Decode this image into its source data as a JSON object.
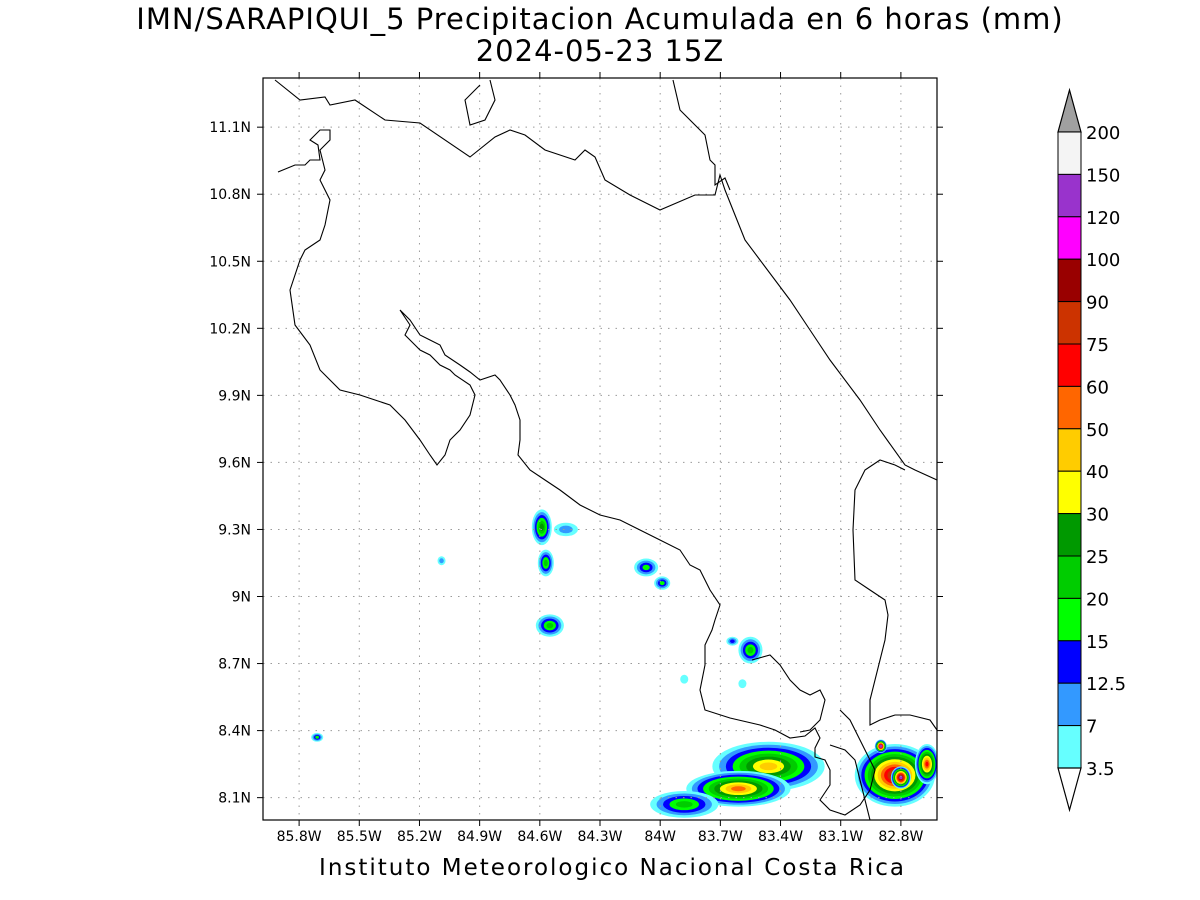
{
  "title": "IMN/SARAPIQUI_5 Precipitacion Acumulada en 6 horas (mm)",
  "subtitle": "2024-05-23 15Z",
  "footer": "Instituto Meteorologico Nacional Costa Rica",
  "map": {
    "lon_range": [
      -85.98,
      -82.62
    ],
    "lat_range": [
      8.0,
      11.32
    ],
    "lon_ticks": [
      {
        "value": -85.8,
        "label": "85.8W"
      },
      {
        "value": -85.5,
        "label": "85.5W"
      },
      {
        "value": -85.2,
        "label": "85.2W"
      },
      {
        "value": -84.9,
        "label": "84.9W"
      },
      {
        "value": -84.6,
        "label": "84.6W"
      },
      {
        "value": -84.3,
        "label": "84.3W"
      },
      {
        "value": -84.0,
        "label": "84W"
      },
      {
        "value": -83.7,
        "label": "83.7W"
      },
      {
        "value": -83.4,
        "label": "83.4W"
      },
      {
        "value": -83.1,
        "label": "83.1W"
      },
      {
        "value": -82.8,
        "label": "82.8W"
      }
    ],
    "lat_ticks": [
      {
        "value": 8.1,
        "label": "8.1N"
      },
      {
        "value": 8.4,
        "label": "8.4N"
      },
      {
        "value": 8.7,
        "label": "8.7N"
      },
      {
        "value": 9.0,
        "label": "9N"
      },
      {
        "value": 9.3,
        "label": "9.3N"
      },
      {
        "value": 9.6,
        "label": "9.6N"
      },
      {
        "value": 9.9,
        "label": "9.9N"
      },
      {
        "value": 10.2,
        "label": "10.2N"
      },
      {
        "value": 10.5,
        "label": "10.5N"
      },
      {
        "value": 10.8,
        "label": "10.8N"
      },
      {
        "value": 11.1,
        "label": "11.1N"
      }
    ],
    "grid": true
  },
  "legend": {
    "levels": [
      "200",
      "150",
      "120",
      "100",
      "90",
      "75",
      "60",
      "50",
      "40",
      "30",
      "25",
      "20",
      "15",
      "12.5",
      "7",
      "3.5"
    ],
    "colors": [
      "#a0a0a0",
      "#f4f4f4",
      "#9933cc",
      "#ff00ff",
      "#990000",
      "#cc3300",
      "#ff0000",
      "#ff6600",
      "#ffcc00",
      "#ffff00",
      "#009900",
      "#00cc00",
      "#00ff00",
      "#0000ff",
      "#3399ff",
      "#66ffff",
      "#ffffff"
    ]
  },
  "precip_cells": [
    {
      "lon": -84.59,
      "lat": 9.31,
      "rx": 0.05,
      "ry": 0.08,
      "max": 25
    },
    {
      "lon": -84.47,
      "lat": 9.3,
      "rx": 0.06,
      "ry": 0.03,
      "max": 7
    },
    {
      "lon": -84.57,
      "lat": 9.15,
      "rx": 0.04,
      "ry": 0.06,
      "max": 20
    },
    {
      "lon": -84.55,
      "lat": 8.87,
      "rx": 0.07,
      "ry": 0.05,
      "max": 20
    },
    {
      "lon": -84.07,
      "lat": 9.13,
      "rx": 0.06,
      "ry": 0.04,
      "max": 15
    },
    {
      "lon": -83.99,
      "lat": 9.06,
      "rx": 0.04,
      "ry": 0.03,
      "max": 15
    },
    {
      "lon": -83.55,
      "lat": 8.76,
      "rx": 0.06,
      "ry": 0.06,
      "max": 20
    },
    {
      "lon": -83.64,
      "lat": 8.8,
      "rx": 0.03,
      "ry": 0.02,
      "max": 12.5
    },
    {
      "lon": -85.09,
      "lat": 9.16,
      "rx": 0.02,
      "ry": 0.02,
      "max": 7
    },
    {
      "lon": -85.71,
      "lat": 8.37,
      "rx": 0.03,
      "ry": 0.02,
      "max": 15
    },
    {
      "lon": -83.88,
      "lat": 8.63,
      "rx": 0.02,
      "ry": 0.02,
      "max": 3.5
    },
    {
      "lon": -83.59,
      "lat": 8.61,
      "rx": 0.02,
      "ry": 0.02,
      "max": 3.5
    },
    {
      "lon": -83.46,
      "lat": 8.24,
      "rx": 0.28,
      "ry": 0.11,
      "max": 40
    },
    {
      "lon": -83.61,
      "lat": 8.14,
      "rx": 0.26,
      "ry": 0.08,
      "max": 50
    },
    {
      "lon": -83.88,
      "lat": 8.07,
      "rx": 0.17,
      "ry": 0.06,
      "max": 20
    },
    {
      "lon": -82.83,
      "lat": 8.2,
      "rx": 0.2,
      "ry": 0.14,
      "max": 90
    },
    {
      "lon": -82.8,
      "lat": 8.19,
      "rx": 0.05,
      "ry": 0.05,
      "max": 120
    },
    {
      "lon": -82.9,
      "lat": 8.33,
      "rx": 0.03,
      "ry": 0.03,
      "max": 120
    },
    {
      "lon": -82.67,
      "lat": 8.25,
      "rx": 0.06,
      "ry": 0.09,
      "max": 60
    }
  ]
}
